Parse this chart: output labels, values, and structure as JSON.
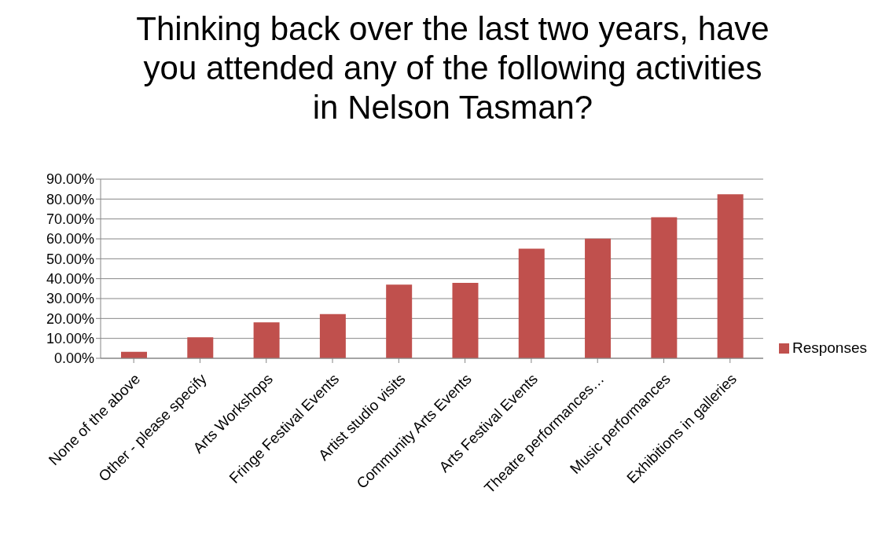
{
  "chart_data": {
    "type": "bar",
    "title": "Thinking back over the last two years, have you attended any of the following activities in Nelson Tasman?",
    "categories": [
      "None of the above",
      "Other - please specify",
      "Arts Workshops",
      "Fringe Festival Events",
      "Artist studio visits",
      "Community Arts Events",
      "Arts Festival Events",
      "Theatre performances…",
      "Music performances",
      "Exhibitions in galleries"
    ],
    "series": [
      {
        "name": "Responses",
        "color": "#c0504d",
        "values": [
          3.3,
          10.6,
          18.1,
          22.2,
          37.0,
          37.9,
          55.1,
          60.1,
          70.9,
          82.4
        ]
      }
    ],
    "ylim": [
      0,
      90
    ],
    "yticks": [
      {
        "value": 0,
        "label": "0.00%"
      },
      {
        "value": 10,
        "label": "10.00%"
      },
      {
        "value": 20,
        "label": "20.00%"
      },
      {
        "value": 30,
        "label": "30.00%"
      },
      {
        "value": 40,
        "label": "40.00%"
      },
      {
        "value": 50,
        "label": "50.00%"
      },
      {
        "value": 60,
        "label": "60.00%"
      },
      {
        "value": 70,
        "label": "70.00%"
      },
      {
        "value": 80,
        "label": "80.00%"
      },
      {
        "value": 90,
        "label": "90.00%"
      }
    ],
    "grid": "y",
    "legend": "right"
  }
}
